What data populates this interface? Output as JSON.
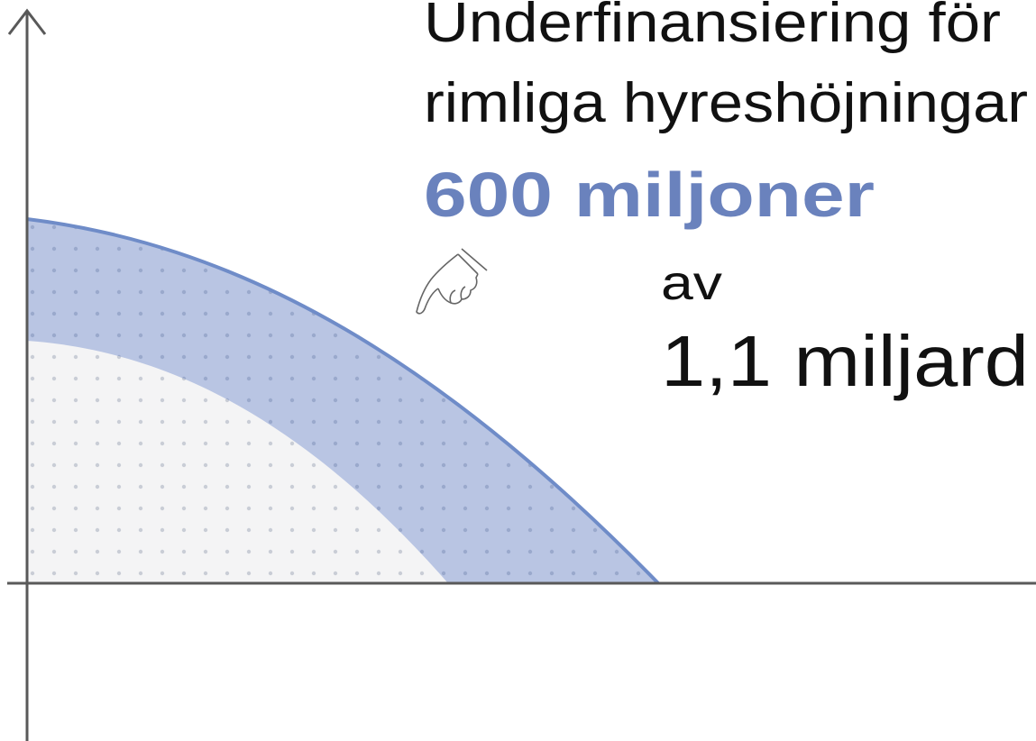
{
  "title": {
    "line1": "Underfinansiering för",
    "line2": "rimliga hyreshöjningar"
  },
  "highlight": "600 miljoner",
  "connector": "av",
  "total": "1,1 miljard"
}
